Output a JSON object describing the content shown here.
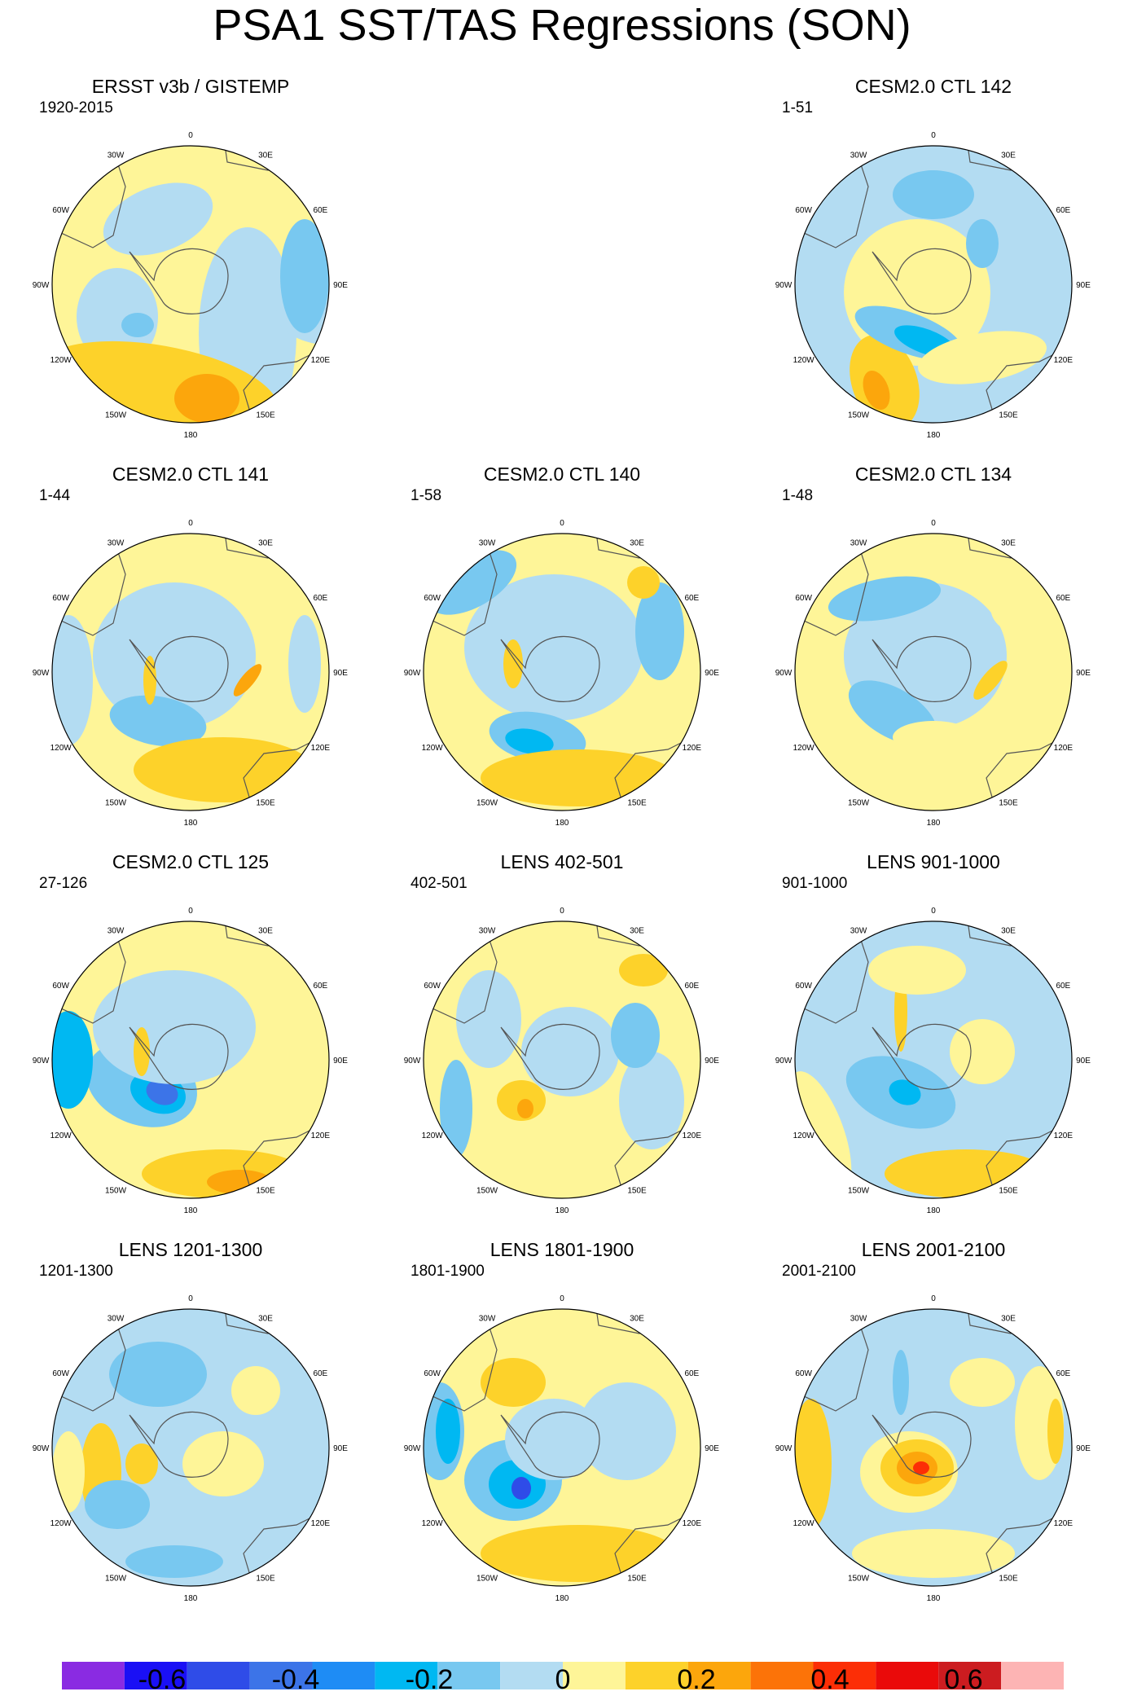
{
  "title": "PSA1 SST/TAS Regressions (SON)",
  "chart_data": {
    "type": "polar-stereographic-contour-maps",
    "projection": "South Polar Stereographic",
    "variable": "SST/TAS regression on PSA1 (SON)",
    "longitude_labels": [
      "0",
      "30E",
      "60E",
      "90E",
      "120E",
      "150E",
      "180",
      "150W",
      "120W",
      "90W",
      "60W",
      "30W"
    ],
    "colorbar": {
      "levels": [
        -0.65,
        -0.55,
        -0.45,
        -0.35,
        -0.25,
        -0.15,
        -0.05,
        0.05,
        0.15,
        0.25,
        0.35,
        0.45,
        0.55,
        0.65
      ],
      "colors": [
        "#8a2be2",
        "#1a10f5",
        "#2f4ce8",
        "#3c74e8",
        "#1e8cf5",
        "#00b8f2",
        "#78c8f0",
        "#b3dcf2",
        "#fef598",
        "#fdd22a",
        "#fca60c",
        "#fc7308",
        "#fc2e06",
        "#ea0a0a",
        "#cc1c20",
        "#fdb4b4"
      ],
      "tick_labels": [
        "-0.6",
        "-0.4",
        "-0.2",
        "0",
        "0.2",
        "0.4",
        "0.6"
      ],
      "tick_values": [
        -0.6,
        -0.4,
        -0.2,
        0,
        0.2,
        0.4,
        0.6
      ]
    },
    "panels": [
      {
        "title": "ERSST v3b / GISTEMP",
        "period": "1920-2015"
      },
      {
        "title": "CESM2.0 CTL 142",
        "period": "1-51"
      },
      {
        "title": "CESM2.0 CTL 141",
        "period": "1-44"
      },
      {
        "title": "CESM2.0 CTL 140",
        "period": "1-58"
      },
      {
        "title": "CESM2.0 CTL 134",
        "period": "1-48"
      },
      {
        "title": "CESM2.0 CTL 125",
        "period": "27-126"
      },
      {
        "title": "LENS 402-501",
        "period": "402-501"
      },
      {
        "title": "LENS 901-1000",
        "period": "901-1000"
      },
      {
        "title": "LENS 1201-1300",
        "period": "1201-1300"
      },
      {
        "title": "LENS 1801-1900",
        "period": "1801-1900"
      },
      {
        "title": "LENS 2001-2100",
        "period": "2001-2100"
      }
    ]
  }
}
